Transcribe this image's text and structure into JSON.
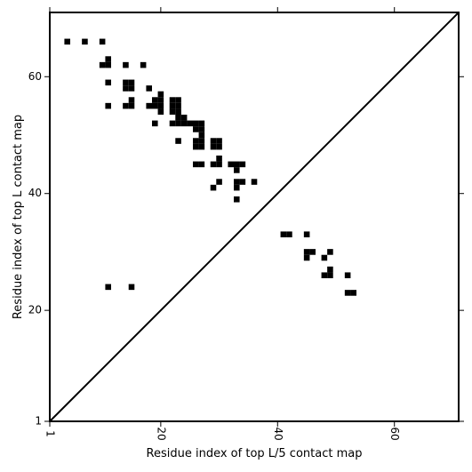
{
  "chart_data": {
    "type": "scatter",
    "marker": "square",
    "diagonal": true,
    "xlabel": "Residue index of top L/5 contact map",
    "ylabel": "Residue index of top L contact map",
    "xlim": [
      1,
      71
    ],
    "ylim": [
      1,
      71
    ],
    "xticks": [
      1,
      20,
      40,
      60
    ],
    "yticks": [
      1,
      20,
      40,
      60
    ],
    "grid": false,
    "upper_triangle_cells": [
      [
        4,
        66
      ],
      [
        7,
        66
      ],
      [
        10,
        66
      ],
      [
        10,
        62
      ],
      [
        11,
        62
      ],
      [
        11,
        63
      ],
      [
        14,
        62
      ],
      [
        17,
        62
      ],
      [
        11,
        59
      ],
      [
        14,
        59
      ],
      [
        15,
        59
      ],
      [
        14,
        58
      ],
      [
        15,
        58
      ],
      [
        18,
        58
      ],
      [
        20,
        57
      ],
      [
        19,
        56
      ],
      [
        20,
        56
      ],
      [
        15,
        56
      ],
      [
        11,
        55
      ],
      [
        14,
        55
      ],
      [
        15,
        55
      ],
      [
        18,
        55
      ],
      [
        19,
        55
      ],
      [
        20,
        55
      ],
      [
        22,
        56
      ],
      [
        23,
        56
      ],
      [
        22,
        55
      ],
      [
        23,
        55
      ],
      [
        22,
        54
      ],
      [
        23,
        54
      ],
      [
        20,
        54
      ],
      [
        23,
        53
      ],
      [
        24,
        53
      ],
      [
        19,
        52
      ],
      [
        22,
        52
      ],
      [
        23,
        52
      ],
      [
        24,
        52
      ],
      [
        25,
        52
      ],
      [
        26,
        52
      ],
      [
        27,
        52
      ],
      [
        26,
        51
      ],
      [
        27,
        51
      ],
      [
        27,
        50
      ],
      [
        26,
        49
      ],
      [
        27,
        49
      ],
      [
        23,
        49
      ],
      [
        29,
        49
      ],
      [
        30,
        49
      ],
      [
        26,
        48
      ],
      [
        27,
        48
      ],
      [
        29,
        48
      ],
      [
        30,
        48
      ],
      [
        30,
        46
      ],
      [
        26,
        45
      ],
      [
        27,
        45
      ],
      [
        29,
        45
      ],
      [
        30,
        45
      ],
      [
        32,
        45
      ],
      [
        33,
        45
      ],
      [
        34,
        45
      ],
      [
        33,
        44
      ],
      [
        30,
        42
      ],
      [
        33,
        42
      ],
      [
        34,
        42
      ],
      [
        36,
        42
      ],
      [
        29,
        41
      ],
      [
        33,
        41
      ],
      [
        33,
        39
      ],
      [
        45,
        33
      ]
    ],
    "lower_triangle_cells": [
      [
        11,
        24
      ],
      [
        15,
        24
      ],
      [
        41,
        33
      ],
      [
        42,
        33
      ],
      [
        45,
        30
      ],
      [
        46,
        30
      ],
      [
        49,
        30
      ],
      [
        45,
        29
      ],
      [
        48,
        29
      ],
      [
        49,
        27
      ],
      [
        48,
        26
      ],
      [
        49,
        26
      ],
      [
        52,
        26
      ],
      [
        52,
        23
      ],
      [
        53,
        23
      ]
    ]
  }
}
